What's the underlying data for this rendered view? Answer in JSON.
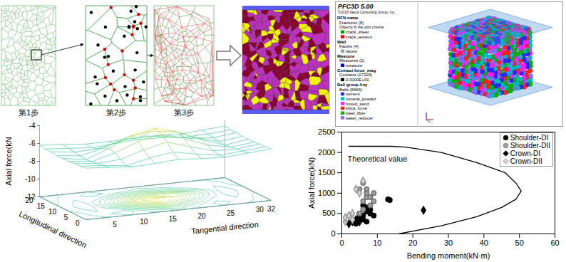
{
  "steps": {
    "labels": [
      "第1步",
      "第2步",
      "第3步"
    ]
  },
  "pfc": {
    "title": "PFC3D 5.00",
    "copyright": "©2016 Itasca Consulting Group, Inc.",
    "sections": [
      {
        "head": "DFN name",
        "count": "Fractures (8)",
        "note": "Objects fit the plot criteria",
        "items": [
          {
            "name": "crack_shear",
            "color": "#00a000"
          },
          {
            "name": "crack_tension",
            "color": "#ff0000"
          }
        ]
      },
      {
        "head": "Wall",
        "count": "Facets (4)",
        "items": [
          {
            "name": "facets",
            "color": "#a0a0a0"
          }
        ]
      },
      {
        "head": "Measure",
        "count": "Measures (1)",
        "items": [
          {
            "name": "measure",
            "color": "#0000ff"
          }
        ]
      },
      {
        "head": "Contact force_mag",
        "count": "Contacts (27329)",
        "items": [
          {
            "name": "0.0000E+00",
            "color": "#000000"
          }
        ]
      },
      {
        "head": "Ball group Any",
        "count": "Balls (5666)",
        "items": [
          {
            "name": "cement",
            "color": "#2a2aff"
          },
          {
            "name": "mineral_powder",
            "color": "#00c0c0"
          },
          {
            "name": "mixed_sand",
            "color": "#ff20ff"
          },
          {
            "name": "silica_fume",
            "color": "#ff2020"
          },
          {
            "name": "steel_fiber",
            "color": "#10b010"
          },
          {
            "name": "water_reducer",
            "color": "#8a6cff"
          }
        ]
      }
    ]
  },
  "surface": {
    "type": "surface",
    "zlabel": "Axial force(kN",
    "xlabel": "Longitudinal direction",
    "ylabel": "Tangential direction",
    "xlim": [
      0,
      20
    ],
    "xticks": [
      0,
      5,
      10,
      15,
      20
    ],
    "ylim": [
      0,
      32
    ],
    "yticks": [
      5,
      10,
      15,
      20,
      25,
      30,
      32
    ],
    "zlim": [
      -12,
      -4
    ],
    "zticks": [
      -4,
      -6,
      -8,
      -10,
      -12
    ],
    "longitudinal": [
      0,
      2.5,
      5,
      7.5,
      10,
      12.5,
      15,
      17.5,
      20
    ],
    "tangential": [
      0,
      4,
      8,
      12,
      16,
      20,
      24,
      28,
      32
    ],
    "values": [
      [
        -6.2,
        -6.4,
        -6.6,
        -6.5,
        -6.3,
        -6.5,
        -6.6,
        -6.4,
        -6.2
      ],
      [
        -6.3,
        -6.5,
        -6.8,
        -6.2,
        -5.8,
        -6.3,
        -6.7,
        -6.5,
        -6.3
      ],
      [
        -6.3,
        -6.6,
        -6.4,
        -5.6,
        -5.0,
        -5.8,
        -6.5,
        -6.6,
        -6.3
      ],
      [
        -6.4,
        -6.7,
        -6.0,
        -5.0,
        -4.4,
        -5.2,
        -6.2,
        -6.7,
        -6.4
      ],
      [
        -6.4,
        -6.8,
        -5.8,
        -4.6,
        -4.1,
        -4.8,
        -5.9,
        -6.8,
        -6.4
      ],
      [
        -6.4,
        -6.7,
        -6.1,
        -5.2,
        -4.8,
        -5.0,
        -6.0,
        -6.7,
        -6.4
      ],
      [
        -6.3,
        -6.6,
        -6.5,
        -5.9,
        -5.6,
        -5.9,
        -6.4,
        -6.6,
        -6.3
      ],
      [
        -6.3,
        -6.5,
        -6.7,
        -6.5,
        -6.3,
        -6.4,
        -6.6,
        -6.5,
        -6.3
      ],
      [
        -6.2,
        -6.4,
        -6.6,
        -6.6,
        -6.5,
        -6.5,
        -6.6,
        -6.4,
        -6.2
      ]
    ]
  },
  "chart_data": {
    "type": "scatter",
    "xlabel": "Bending moment(kN·m)",
    "ylabel": "Axial force(kN)",
    "xlim": [
      0,
      60
    ],
    "xticks": [
      0,
      10,
      20,
      30,
      40,
      50,
      60
    ],
    "ylim": [
      0,
      2500
    ],
    "yticks": [
      0,
      500,
      1000,
      1500,
      2000,
      2500
    ],
    "grid": false,
    "legend": "top-right",
    "series": [
      {
        "name": "Shoulder-DI",
        "color": "#000000",
        "marker": "circle",
        "x": [
          3,
          4,
          5,
          5,
          6,
          6,
          7,
          7,
          8,
          8,
          9,
          6,
          7,
          13,
          13.5
        ],
        "values": [
          300,
          250,
          400,
          500,
          350,
          450,
          300,
          550,
          500,
          600,
          450,
          700,
          650,
          850,
          830
        ]
      },
      {
        "name": "Shoulder-DII",
        "color": "#a0a0a0",
        "marker": "circle",
        "x": [
          5,
          6,
          6,
          7,
          7,
          8,
          8,
          9,
          5,
          7,
          9,
          6
        ],
        "values": [
          500,
          600,
          800,
          900,
          1000,
          700,
          900,
          1000,
          1100,
          1100,
          800,
          1250
        ]
      },
      {
        "name": "Crown-DI",
        "color": "#000000",
        "marker": "diamond",
        "x": [
          2,
          3,
          4,
          5,
          23
        ],
        "values": [
          250,
          300,
          350,
          300,
          580
        ]
      },
      {
        "name": "Crown-DII",
        "color": "#d8d8d8",
        "marker": "diamond",
        "x": [
          1,
          1,
          2,
          3,
          4,
          5,
          6,
          3
        ],
        "values": [
          300,
          400,
          450,
          500,
          1100,
          1000,
          1300,
          350
        ]
      },
      {
        "name": "Theoretical value",
        "type": "line",
        "color": "#000000",
        "line_style": "solid",
        "x": [
          2,
          14,
          18,
          28,
          38,
          46,
          49,
          50.5,
          49,
          45,
          38,
          28,
          16
        ],
        "values": [
          2150,
          2150,
          2130,
          2000,
          1750,
          1500,
          1250,
          1050,
          850,
          650,
          420,
          200,
          0
        ]
      }
    ]
  }
}
